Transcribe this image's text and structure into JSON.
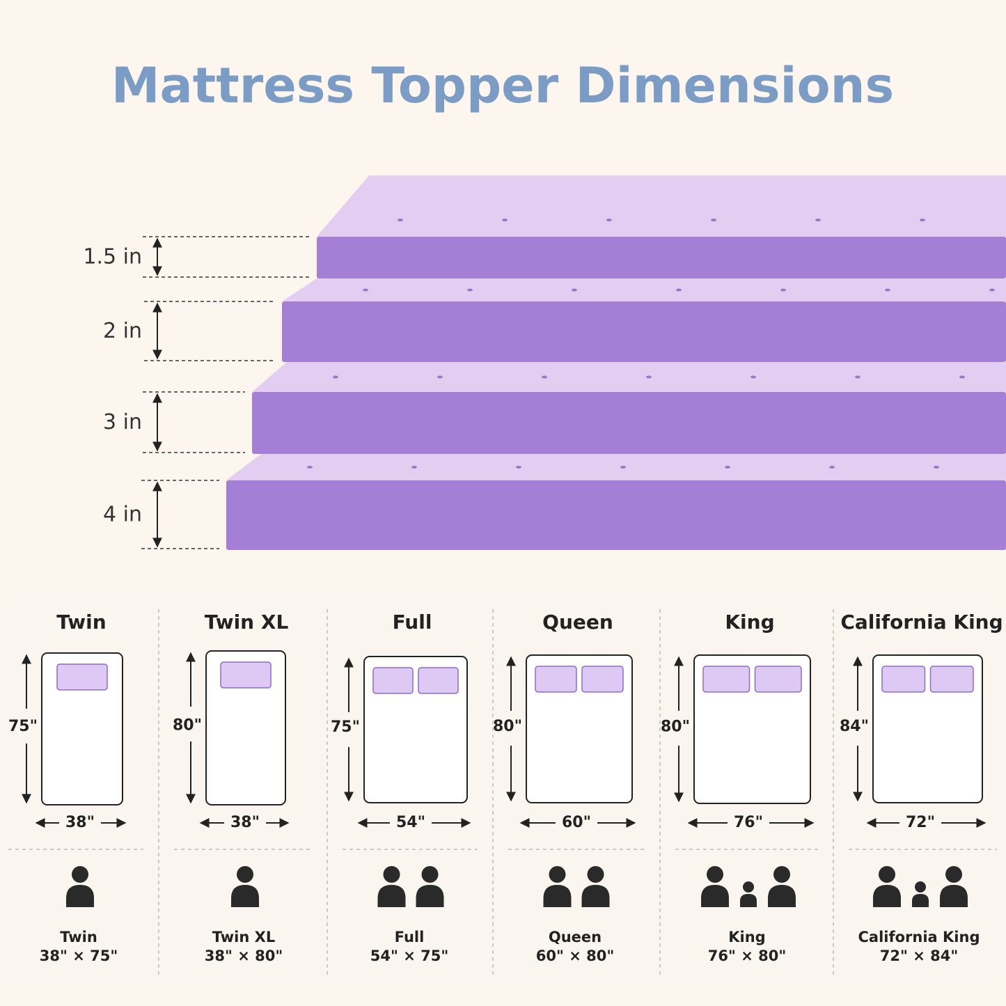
{
  "title": "Mattress Topper Dimensions",
  "thicknesses": [
    "1.5 in",
    "2 in",
    "3 in",
    "4 in"
  ],
  "sizes": [
    {
      "name": "Twin",
      "length": "75\"",
      "width": "38\"",
      "caption": "Twin",
      "dimensions": "38\" × 75\""
    },
    {
      "name": "Twin XL",
      "length": "80\"",
      "width": "38\"",
      "caption": "Twin XL",
      "dimensions": "38\" × 80\""
    },
    {
      "name": "Full",
      "length": "75\"",
      "width": "54\"",
      "caption": "Full",
      "dimensions": "54\" × 75\""
    },
    {
      "name": "Queen",
      "length": "80\"",
      "width": "60\"",
      "caption": "Queen",
      "dimensions": "60\" × 80\""
    },
    {
      "name": "King",
      "length": "80\"",
      "width": "76\"",
      "caption": "King",
      "dimensions": "76\" × 80\""
    },
    {
      "name": "California King",
      "length": "84\"",
      "width": "72\"",
      "caption": "California King",
      "dimensions": "72\" × 84\""
    }
  ]
}
